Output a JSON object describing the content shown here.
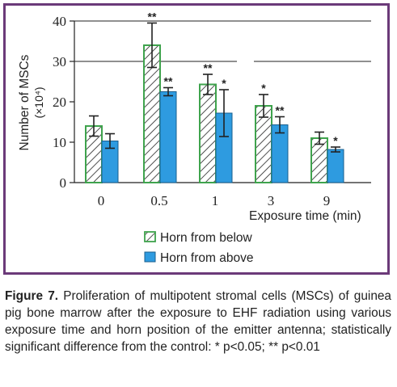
{
  "chart_data": {
    "type": "bar",
    "categories": [
      "0",
      "0.5",
      "1",
      "3",
      "9"
    ],
    "xlabel": "Exposure time (min)",
    "ylabel_line1": "Number of MSCs",
    "ylabel_line2": "(×10⁴)",
    "ylim": [
      0,
      40
    ],
    "yticks": [
      "0",
      "10",
      "20",
      "30",
      "40"
    ],
    "grid": "horizontal at 30 and 40",
    "legend_placement": "bottom-center",
    "series": [
      {
        "name": "Horn from below",
        "values": [
          14,
          34,
          24.3,
          19,
          11
        ],
        "errors": [
          2.5,
          5.5,
          2.5,
          2.8,
          1.5
        ],
        "significance": [
          "",
          "**",
          "**",
          "*",
          ""
        ],
        "fill": "hatched",
        "edge_color": "#3fa34d"
      },
      {
        "name": "Horn from above",
        "values": [
          10.3,
          22.5,
          17.2,
          14.3,
          8.2
        ],
        "errors": [
          1.8,
          1.0,
          5.8,
          2.0,
          0.6
        ],
        "significance": [
          "",
          "**",
          "*",
          "**",
          "*"
        ],
        "fill": "solid",
        "color": "#2e9be0"
      }
    ]
  },
  "caption": {
    "figure_label": "Figure 7.",
    "text": " Proliferation of multipotent stromal cells (MSCs) of guinea pig bone marrow after the exposure to EHF radiation using various exposure time and horn position of the emitter antenna; statistically significant difference from the control: * p<0.05; ** p<0.01"
  },
  "colors": {
    "frame": "#6b3a79",
    "hatched_edge": "#3fa34d",
    "solid_bar": "#2e9be0"
  }
}
